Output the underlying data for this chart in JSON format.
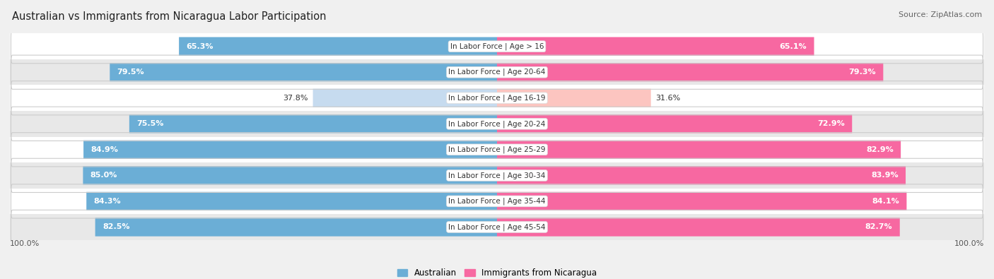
{
  "title": "Australian vs Immigrants from Nicaragua Labor Participation",
  "source": "Source: ZipAtlas.com",
  "categories": [
    "In Labor Force | Age > 16",
    "In Labor Force | Age 20-64",
    "In Labor Force | Age 16-19",
    "In Labor Force | Age 20-24",
    "In Labor Force | Age 25-29",
    "In Labor Force | Age 30-34",
    "In Labor Force | Age 35-44",
    "In Labor Force | Age 45-54"
  ],
  "australian_values": [
    65.3,
    79.5,
    37.8,
    75.5,
    84.9,
    85.0,
    84.3,
    82.5
  ],
  "nicaragua_values": [
    65.1,
    79.3,
    31.6,
    72.9,
    82.9,
    83.9,
    84.1,
    82.7
  ],
  "australian_color_full": "#6baed6",
  "australian_color_light": "#c6dbef",
  "nicaragua_color_full": "#f768a1",
  "nicaragua_color_light": "#fcc5c0",
  "max_value": 100.0,
  "bg_color": "#f0f0f0",
  "row_bg_even": "#ffffff",
  "row_bg_odd": "#e8e8e8",
  "legend_australian": "Australian",
  "legend_nicaragua": "Immigrants from Nicaragua",
  "title_fontsize": 10.5,
  "source_fontsize": 8,
  "bar_label_fontsize": 8,
  "cat_label_fontsize": 7.5
}
